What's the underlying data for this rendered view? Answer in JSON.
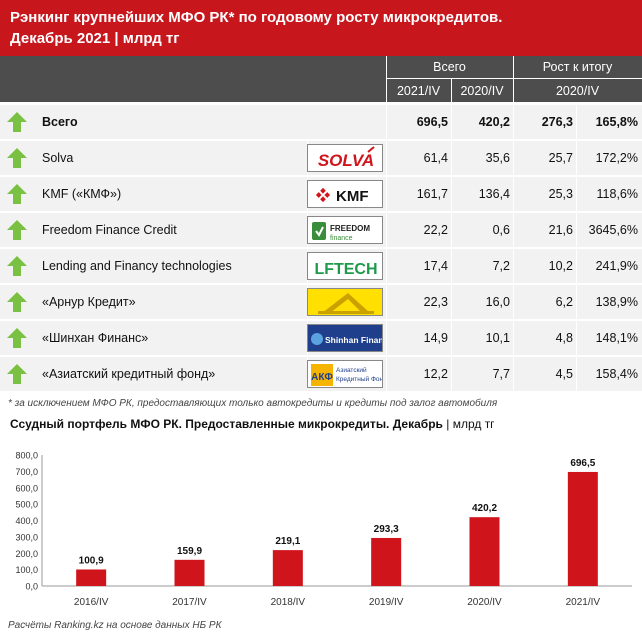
{
  "header": {
    "title_line1": "Рэнкинг крупнейших МФО РК* по годовому росту микрокредитов.",
    "title_line2": "Декабрь 2021 | млрд тг"
  },
  "table": {
    "group_total": "Всего",
    "group_growth": "Рост к итогу",
    "col_2021": "2021/IV",
    "col_2020": "2020/IV",
    "col_growth_2020": "2020/IV",
    "rows": [
      {
        "name": "Всего",
        "v2021": "696,5",
        "v2020": "420,2",
        "abs": "276,3",
        "pct": "165,8%",
        "logo": ""
      },
      {
        "name": "Solva",
        "v2021": "61,4",
        "v2020": "35,6",
        "abs": "25,7",
        "pct": "172,2%",
        "logo": "SOLVA"
      },
      {
        "name": "KMF («КМФ»)",
        "v2021": "161,7",
        "v2020": "136,4",
        "abs": "25,3",
        "pct": "118,6%",
        "logo": "KMF"
      },
      {
        "name": "Freedom Finance Credit",
        "v2021": "22,2",
        "v2020": "0,6",
        "abs": "21,6",
        "pct": "3645,6%",
        "logo": "FREEDOM finance"
      },
      {
        "name": "Lending and Financy technologies",
        "v2021": "17,4",
        "v2020": "7,2",
        "abs": "10,2",
        "pct": "241,9%",
        "logo": "LFTECH"
      },
      {
        "name": "«Арнур Кредит»",
        "v2021": "22,3",
        "v2020": "16,0",
        "abs": "6,2",
        "pct": "138,9%",
        "logo": ""
      },
      {
        "name": "«Шинхан Финанс»",
        "v2021": "14,9",
        "v2020": "10,1",
        "abs": "4,8",
        "pct": "148,1%",
        "logo": "Shinhan Finance"
      },
      {
        "name": "«Азиатский кредитный фонд»",
        "v2021": "12,2",
        "v2020": "7,7",
        "abs": "4,5",
        "pct": "158,4%",
        "logo": "АКФ"
      }
    ]
  },
  "note": "* за исключением МФО РК, предоставляющих только автокредиты и кредиты под залог автомобиля",
  "chart_title": "Ссудный портфель МФО РК. Предоставленные микрокредиты. Декабрь",
  "chart_unit": "| млрд тг",
  "footer": "Расчёты Ranking.kz на основе данных НБ РК",
  "colors": {
    "header": "#c8161d",
    "table_head": "#4d4d4d",
    "bar": "#d0141b",
    "arrow": "#7ac143"
  },
  "chart_data": {
    "type": "bar",
    "categories": [
      "2016/IV",
      "2017/IV",
      "2018/IV",
      "2019/IV",
      "2020/IV",
      "2021/IV"
    ],
    "values": [
      100.9,
      159.9,
      219.1,
      293.3,
      420.2,
      696.5
    ],
    "value_labels": [
      "100,9",
      "159,9",
      "219,1",
      "293,3",
      "420,2",
      "696,5"
    ],
    "yticks": [
      "0,0",
      "100,0",
      "200,0",
      "300,0",
      "400,0",
      "500,0",
      "600,0",
      "700,0",
      "800,0"
    ],
    "ylim": [
      0,
      800
    ],
    "grid": false,
    "title": "Ссудный портфель МФО РК. Предоставленные микрокредиты. Декабрь",
    "xlabel": "",
    "ylabel": ""
  }
}
